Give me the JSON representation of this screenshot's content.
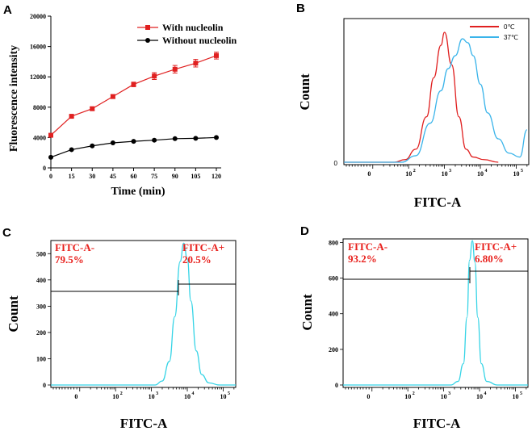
{
  "colors": {
    "red": "#e02020",
    "black": "#000000",
    "blue": "#3ab4ea",
    "cyan": "#36d4e6",
    "gate_text": "#e8201c"
  },
  "chart_data": [
    {
      "panel": "A",
      "type": "line",
      "xlabel": "Time (min)",
      "ylabel": "Fluorescence intensity",
      "x": [
        0,
        15,
        30,
        45,
        60,
        75,
        90,
        105,
        120
      ],
      "x_ticks": [
        "0",
        "15",
        "30",
        "45",
        "60",
        "75",
        "90",
        "105",
        "120"
      ],
      "y_ticks": [
        "0",
        "4000",
        "8000",
        "12000",
        "16000",
        "20000"
      ],
      "xlim": [
        0,
        120
      ],
      "ylim": [
        0,
        20000
      ],
      "legend_position": "top-right",
      "series": [
        {
          "name": "With nucleolin",
          "marker": "square",
          "color": "#e02020",
          "values": [
            4300,
            6800,
            7800,
            9400,
            11000,
            12100,
            13000,
            13800,
            14800
          ],
          "errors": [
            0,
            150,
            200,
            250,
            300,
            450,
            500,
            500,
            450
          ]
        },
        {
          "name": "Without nucleolin",
          "marker": "circle",
          "color": "#000000",
          "values": [
            1400,
            2400,
            2900,
            3300,
            3500,
            3650,
            3850,
            3900,
            4000
          ],
          "errors": [
            0,
            0,
            0,
            0,
            0,
            0,
            0,
            0,
            0
          ]
        }
      ]
    },
    {
      "panel": "B",
      "type": "area",
      "xlabel": "FITC-A",
      "ylabel": "Count",
      "y_ticks": [
        "0"
      ],
      "x_ticks": [
        "0",
        "10",
        "10",
        "10",
        "10"
      ],
      "x_tick_exps": [
        "",
        "2",
        "3",
        "4",
        "5"
      ],
      "legend_position": "top-right",
      "series": [
        {
          "name": "0℃",
          "color": "#e02020",
          "x": [
            1.6,
            1.9,
            2.2,
            2.5,
            2.7,
            2.9,
            3.0,
            3.2,
            3.4,
            3.6,
            3.8,
            4.1,
            4.5
          ],
          "values": [
            0.0,
            0.02,
            0.1,
            0.35,
            0.65,
            0.9,
            1.0,
            0.75,
            0.35,
            0.1,
            0.04,
            0.02,
            0.0
          ]
        },
        {
          "name": "37℃",
          "color": "#3ab4ea",
          "x": [
            1.8,
            2.2,
            2.6,
            2.9,
            3.1,
            3.3,
            3.5,
            3.65,
            3.8,
            4.0,
            4.2,
            4.5,
            4.8,
            5.1,
            5.3
          ],
          "values": [
            0.0,
            0.05,
            0.3,
            0.55,
            0.72,
            0.82,
            0.95,
            0.92,
            0.82,
            0.6,
            0.38,
            0.18,
            0.07,
            0.04,
            0.25
          ]
        }
      ]
    },
    {
      "panel": "C",
      "type": "area",
      "xlabel": "FITC-A",
      "ylabel": "Count",
      "ylim": [
        0,
        550
      ],
      "y_ticks": [
        "0",
        "100",
        "200",
        "300",
        "400",
        "500"
      ],
      "x_ticks": [
        "0",
        "10",
        "10",
        "10",
        "10"
      ],
      "x_tick_exps": [
        "",
        "2",
        "3",
        "4",
        "5"
      ],
      "gates": [
        {
          "label": "FITC-A-",
          "percent": "79.5%"
        },
        {
          "label": "FITC-A+",
          "percent": "20.5%"
        }
      ],
      "series": [
        {
          "name": "FITC-A",
          "color": "#36d4e6",
          "x": [
            3.1,
            3.3,
            3.5,
            3.65,
            3.8,
            3.9,
            4.0,
            4.1,
            4.25,
            4.4,
            4.6,
            4.9
          ],
          "values": [
            0,
            15,
            90,
            260,
            470,
            540,
            480,
            320,
            130,
            40,
            8,
            0
          ]
        }
      ]
    },
    {
      "panel": "D",
      "type": "area",
      "xlabel": "FITC-A",
      "ylabel": "Count",
      "ylim": [
        0,
        820
      ],
      "y_ticks": [
        "0",
        "200",
        "400",
        "600",
        "800"
      ],
      "x_ticks": [
        "0",
        "10",
        "10",
        "10",
        "10"
      ],
      "x_tick_exps": [
        "",
        "2",
        "3",
        "4",
        "5"
      ],
      "gates": [
        {
          "label": "FITC-A-",
          "percent": "93.2%"
        },
        {
          "label": "FITC-A+",
          "percent": "6.80%"
        }
      ],
      "series": [
        {
          "name": "FITC-A",
          "color": "#36d4e6",
          "x": [
            3.2,
            3.4,
            3.55,
            3.65,
            3.72,
            3.8,
            3.87,
            3.95,
            4.05,
            4.2,
            4.5
          ],
          "values": [
            0,
            20,
            120,
            380,
            700,
            810,
            690,
            380,
            120,
            20,
            0
          ]
        }
      ]
    }
  ]
}
